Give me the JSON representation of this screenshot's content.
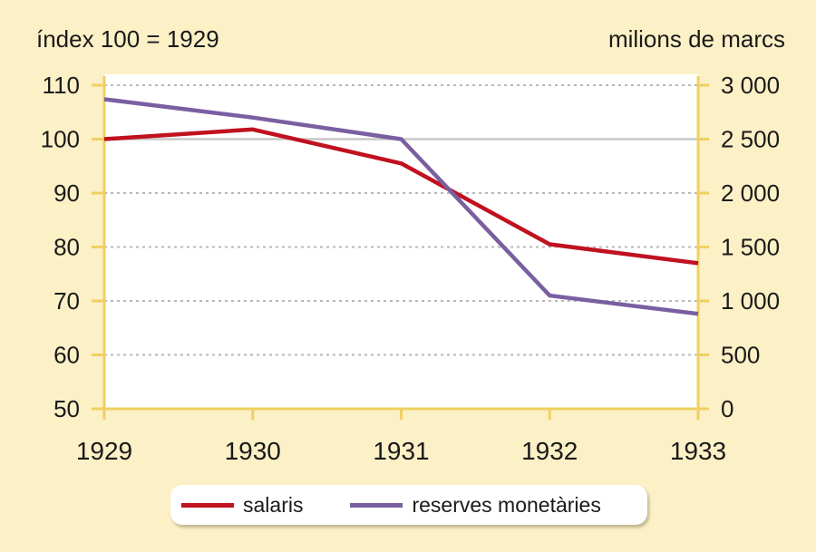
{
  "chart_data": {
    "type": "line",
    "left_axis_label": "índex 100 = 1929",
    "right_axis_label": "milions de marcs",
    "x": [
      "1929",
      "1930",
      "1931",
      "1932",
      "1933"
    ],
    "y_left": {
      "ticks": [
        "110",
        "100",
        "90",
        "80",
        "70",
        "60",
        "50"
      ],
      "range": [
        50,
        110
      ]
    },
    "y_right": {
      "ticks": [
        "3 000",
        "2 500",
        "2 000",
        "1 500",
        "1 000",
        "500",
        "0"
      ],
      "range": [
        0,
        3000
      ]
    },
    "grid": true,
    "legend_position": "bottom",
    "series": [
      {
        "name": "salaris",
        "axis": "left",
        "color": "#c0111f",
        "values": [
          100,
          101.8,
          95.5,
          80.5,
          77
        ]
      },
      {
        "name": "reserves monetàries",
        "axis": "right",
        "color": "#7a5fa0",
        "values": [
          2870,
          2700,
          2500,
          1050,
          880
        ]
      }
    ]
  }
}
